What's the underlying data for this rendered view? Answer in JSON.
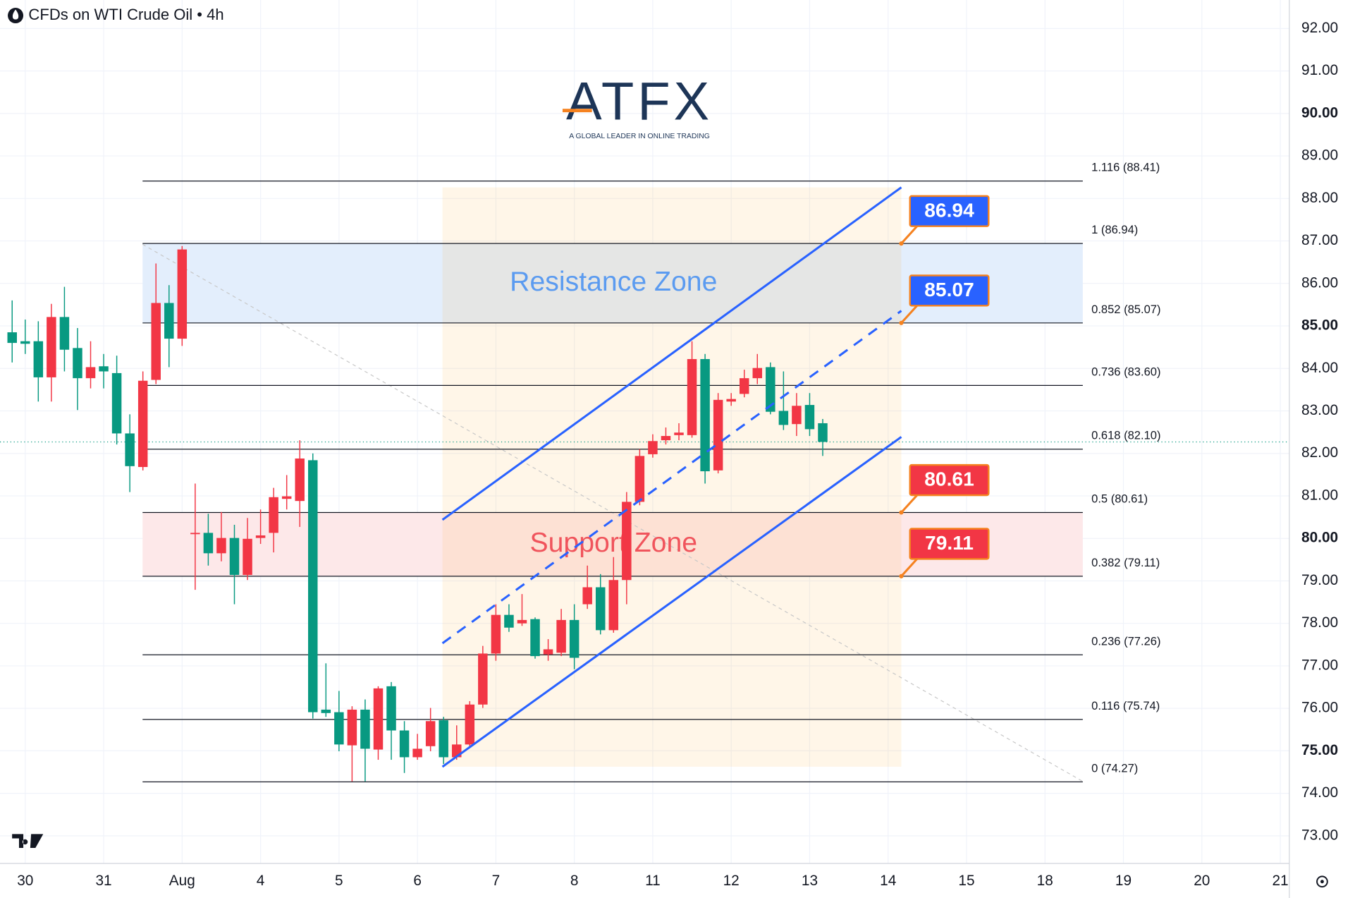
{
  "chart_data": {
    "type": "candlestick",
    "title": "CFDs on WTI Crude Oil • 4h",
    "logo": "ATFX",
    "logo_tagline": "A GLOBAL LEADER IN ONLINE TRADING",
    "up_color": "#f23645",
    "down_color": "#089981",
    "grid": true,
    "xlim": [
      -0.93,
      97.69
    ],
    "xticks": [
      {
        "value": 1,
        "label": "30"
      },
      {
        "value": 7,
        "label": "31"
      },
      {
        "value": 13,
        "label": "Aug"
      },
      {
        "value": 19,
        "label": "4"
      },
      {
        "value": 25,
        "label": "5"
      },
      {
        "value": 31,
        "label": "6"
      },
      {
        "value": 37,
        "label": "7"
      },
      {
        "value": 43,
        "label": "8"
      },
      {
        "value": 49,
        "label": "11"
      },
      {
        "value": 55,
        "label": "12"
      },
      {
        "value": 61,
        "label": "13"
      },
      {
        "value": 67,
        "label": "14"
      },
      {
        "value": 73,
        "label": "15"
      },
      {
        "value": 79,
        "label": "18"
      },
      {
        "value": 85,
        "label": "19"
      },
      {
        "value": 91,
        "label": "20"
      },
      {
        "value": 97,
        "label": "21"
      }
    ],
    "ylim": [
      72.35,
      92.67
    ],
    "yticks": [
      {
        "value": 73,
        "label": "73.00"
      },
      {
        "value": 74,
        "label": "74.00"
      },
      {
        "value": 75,
        "label": "75.00"
      },
      {
        "value": 76,
        "label": "76.00"
      },
      {
        "value": 77,
        "label": "77.00"
      },
      {
        "value": 78,
        "label": "78.00"
      },
      {
        "value": 79,
        "label": "79.00"
      },
      {
        "value": 80,
        "label": "80.00"
      },
      {
        "value": 81,
        "label": "81.00"
      },
      {
        "value": 82,
        "label": "82.00"
      },
      {
        "value": 83,
        "label": "83.00"
      },
      {
        "value": 84,
        "label": "84.00"
      },
      {
        "value": 85,
        "label": "85.00"
      },
      {
        "value": 86,
        "label": "86.00"
      },
      {
        "value": 87,
        "label": "87.00"
      },
      {
        "value": 88,
        "label": "88.00"
      },
      {
        "value": 89,
        "label": "89.00"
      },
      {
        "value": 90,
        "label": "90.00"
      },
      {
        "value": 91,
        "label": "91.00"
      },
      {
        "value": 92,
        "label": "92.00"
      }
    ],
    "x": [
      0,
      1,
      2,
      3,
      4,
      5,
      6,
      7,
      8,
      9,
      10,
      11,
      12,
      13,
      14,
      15,
      16,
      17,
      18,
      19,
      20,
      21,
      22,
      23,
      24,
      25,
      26,
      27,
      28,
      29,
      30,
      31,
      32,
      33,
      34,
      35,
      36,
      37,
      38,
      39,
      40,
      41,
      42,
      43,
      44,
      45,
      46,
      47,
      48,
      49,
      50,
      51,
      52,
      53,
      54,
      55,
      56,
      57,
      58,
      59,
      60,
      61,
      62
    ],
    "open": [
      84.85,
      84.64,
      84.64,
      83.79,
      85.21,
      84.48,
      83.77,
      84.05,
      83.89,
      82.47,
      81.68,
      83.73,
      85.54,
      84.7,
      80.11,
      80.13,
      79.65,
      80.01,
      79.14,
      80.01,
      80.13,
      80.93,
      80.88,
      81.84,
      75.97,
      75.91,
      75.13,
      75.97,
      75.03,
      76.52,
      75.48,
      74.85,
      75.11,
      75.72,
      74.85,
      75.15,
      76.09,
      77.29,
      78.2,
      78.0,
      78.1,
      77.27,
      77.31,
      78.08,
      78.45,
      78.85,
      77.84,
      79.02,
      80.86,
      81.98,
      82.31,
      82.43,
      82.43,
      84.22,
      81.6,
      83.22,
      83.4,
      83.77,
      84.03,
      83.0,
      82.69,
      83.14,
      82.71
    ],
    "high": [
      85.6,
      85.15,
      85.11,
      85.52,
      85.92,
      84.95,
      84.64,
      84.34,
      84.3,
      82.92,
      83.93,
      86.47,
      85.96,
      86.88,
      81.29,
      80.58,
      80.62,
      80.32,
      80.48,
      80.68,
      81.19,
      81.49,
      82.31,
      82.0,
      77.06,
      76.41,
      76.05,
      76.21,
      76.52,
      76.62,
      75.7,
      75.4,
      76.01,
      75.8,
      75.6,
      76.17,
      77.47,
      78.45,
      78.45,
      78.69,
      78.14,
      77.63,
      78.34,
      78.45,
      79.36,
      79.16,
      79.56,
      81.09,
      82.1,
      82.45,
      82.61,
      82.71,
      84.64,
      84.34,
      83.42,
      83.42,
      83.97,
      84.34,
      84.14,
      83.93,
      83.42,
      83.42,
      82.81
    ],
    "low": [
      84.14,
      84.34,
      83.22,
      83.22,
      83.93,
      83.02,
      83.53,
      83.53,
      82.21,
      81.09,
      81.6,
      83.63,
      84.03,
      84.53,
      78.79,
      79.36,
      79.46,
      78.45,
      79.02,
      79.87,
      79.67,
      80.68,
      80.27,
      75.76,
      75.8,
      74.99,
      74.28,
      74.28,
      74.79,
      74.79,
      74.48,
      74.79,
      74.99,
      74.69,
      74.79,
      75.09,
      76.01,
      77.12,
      77.8,
      77.94,
      77.17,
      77.12,
      77.23,
      76.92,
      78.34,
      77.74,
      77.78,
      78.45,
      80.78,
      81.9,
      82.21,
      82.31,
      82.37,
      81.29,
      81.53,
      83.12,
      83.32,
      83.63,
      82.92,
      82.55,
      82.41,
      82.41,
      81.94
    ],
    "close": [
      84.6,
      84.58,
      83.79,
      85.21,
      84.44,
      83.77,
      84.03,
      83.93,
      82.47,
      81.7,
      83.71,
      85.54,
      84.7,
      86.8,
      80.13,
      79.65,
      80.01,
      79.14,
      79.99,
      80.07,
      80.97,
      80.99,
      81.88,
      75.91,
      75.89,
      75.15,
      75.97,
      75.05,
      76.47,
      75.48,
      74.85,
      75.05,
      75.7,
      74.85,
      75.15,
      76.09,
      77.29,
      78.2,
      77.9,
      78.08,
      77.23,
      77.39,
      78.08,
      77.19,
      78.85,
      77.84,
      79.02,
      80.86,
      81.94,
      82.29,
      82.41,
      82.49,
      84.22,
      81.58,
      83.26,
      83.28,
      83.77,
      84.01,
      82.98,
      82.67,
      83.12,
      82.57,
      82.27
    ],
    "fib_levels": [
      {
        "value": 88.41,
        "label": "1.116 (88.41)"
      },
      {
        "value": 86.94,
        "label": "1 (86.94)"
      },
      {
        "value": 85.07,
        "label": "0.852 (85.07)"
      },
      {
        "value": 83.6,
        "label": "0.736 (83.60)"
      },
      {
        "value": 82.1,
        "label": "0.618 (82.10)"
      },
      {
        "value": 80.61,
        "label": "0.5 (80.61)"
      },
      {
        "value": 79.11,
        "label": "0.382 (79.11)"
      },
      {
        "value": 77.26,
        "label": "0.236 (77.26)"
      },
      {
        "value": 75.74,
        "label": "0.116 (75.74)"
      },
      {
        "value": 74.27,
        "label": "0 (74.27)"
      }
    ],
    "zones": [
      {
        "label": "Resistance Zone",
        "range": [
          85.07,
          86.94
        ],
        "color": "#e3eefc",
        "text_color": "#5b9bf0"
      },
      {
        "label": "Support Zone",
        "range": [
          79.11,
          80.61
        ],
        "color": "#fde8e9",
        "text_color": "#f0545c"
      }
    ],
    "callouts": [
      {
        "value": 86.94,
        "color": "#2962ff"
      },
      {
        "value": 85.07,
        "color": "#2962ff"
      },
      {
        "value": 80.61,
        "color": "#f23645"
      },
      {
        "value": 79.11,
        "color": "#f23645"
      }
    ]
  }
}
